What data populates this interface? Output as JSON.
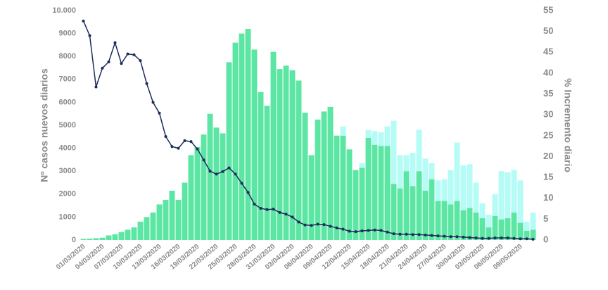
{
  "chart_data": {
    "type": "bar",
    "ylabel": "Nº casos nuevos diarios",
    "y2label": "% Incremento diario",
    "categories": [
      "01/03/2020",
      null,
      null,
      "04/03/2020",
      null,
      null,
      "07/03/2020",
      null,
      null,
      "10/03/2020",
      null,
      null,
      "13/03/2020",
      null,
      null,
      "16/03/2020",
      null,
      null,
      "19/03/2020",
      null,
      null,
      "22/03/2020",
      null,
      null,
      "25/03/2020",
      null,
      null,
      "28/03/2020",
      null,
      null,
      "31/03/2020",
      null,
      null,
      "03/04/2020",
      null,
      null,
      "06/04/2020",
      null,
      null,
      "09/04/2020",
      null,
      null,
      "12/04/2020",
      null,
      null,
      "15/04/2020",
      null,
      null,
      "18/04/2020",
      null,
      null,
      "21/04/2020",
      null,
      null,
      "24/04/2020",
      null,
      null,
      "27/04/2020",
      null,
      null,
      "30/04/2020",
      null,
      null,
      "03/05/2020",
      null,
      null,
      "06/05/2020",
      null,
      null,
      "09/05/2020",
      null,
      null
    ],
    "series": [
      {
        "color": "#5ce6a4",
        "values": [
          50,
          60,
          80,
          100,
          200,
          250,
          350,
          450,
          550,
          800,
          1000,
          1200,
          1550,
          1750,
          2150,
          1750,
          2500,
          3700,
          4050,
          4600,
          5500,
          4900,
          4650,
          7750,
          8600,
          9000,
          9200,
          8300,
          6450,
          5850,
          8200,
          7450,
          7600,
          7400,
          6950,
          5550,
          3700,
          5250,
          5600,
          5800,
          4550,
          4550,
          3950,
          3050,
          3150,
          4450,
          4150,
          4100,
          4100,
          2450,
          2250,
          3000,
          2350,
          3000,
          2150,
          2650,
          1700,
          1700,
          1550,
          1700,
          1300,
          1400,
          1200,
          950,
          550,
          1050,
          900,
          950,
          1200,
          750,
          400,
          450
        ]
      },
      {
        "color": "#b5fbf6",
        "values": [
          0,
          0,
          0,
          0,
          0,
          0,
          0,
          0,
          0,
          0,
          0,
          0,
          0,
          0,
          0,
          0,
          0,
          0,
          0,
          0,
          0,
          0,
          0,
          0,
          0,
          0,
          0,
          0,
          0,
          0,
          0,
          0,
          0,
          0,
          0,
          0,
          0,
          0,
          0,
          0,
          0,
          400,
          0,
          0,
          200,
          350,
          600,
          600,
          850,
          2750,
          1450,
          700,
          1450,
          1800,
          1400,
          700,
          900,
          950,
          1500,
          2550,
          1950,
          1900,
          1300,
          650,
          550,
          950,
          2100,
          2000,
          1850,
          1850,
          400,
          750
        ]
      },
      {
        "type": "line",
        "axis": "y2",
        "color": "#1c2b5c",
        "values": [
          52.5,
          49,
          36.7,
          41.2,
          42.7,
          47.3,
          42.3,
          44.6,
          44.4,
          43,
          37.5,
          33,
          30.4,
          24.8,
          22.4,
          22,
          23.8,
          23.6,
          21.8,
          19.2,
          16.5,
          15.8,
          16.4,
          17.3,
          15.8,
          13.6,
          11.4,
          8.6,
          7.6,
          7.3,
          7.4,
          6.6,
          6.2,
          5.5,
          4.3,
          3.6,
          3.5,
          3.8,
          3.7,
          3.3,
          2.9,
          2.6,
          2.1,
          2.0,
          2.2,
          2.3,
          2.4,
          2.3,
          1.9,
          1.5,
          1.4,
          1.4,
          1.3,
          1.3,
          1.2,
          1.1,
          1.0,
          0.9,
          0.8,
          0.8,
          0.7,
          0.6,
          0.5,
          0.4,
          0.4,
          0.5,
          0.5,
          0.5,
          0.4,
          0.3,
          0.3,
          0.2
        ]
      }
    ],
    "ylim": [
      0,
      10000
    ],
    "yticks": [
      0,
      1000,
      2000,
      3000,
      4000,
      5000,
      6000,
      7000,
      8000,
      9000,
      {
        "value": 10000,
        "label": "10.000"
      }
    ],
    "y2lim": [
      0,
      55
    ],
    "y2ticks": [
      0,
      5,
      10,
      15,
      20,
      25,
      30,
      35,
      40,
      45,
      50,
      55
    ]
  }
}
